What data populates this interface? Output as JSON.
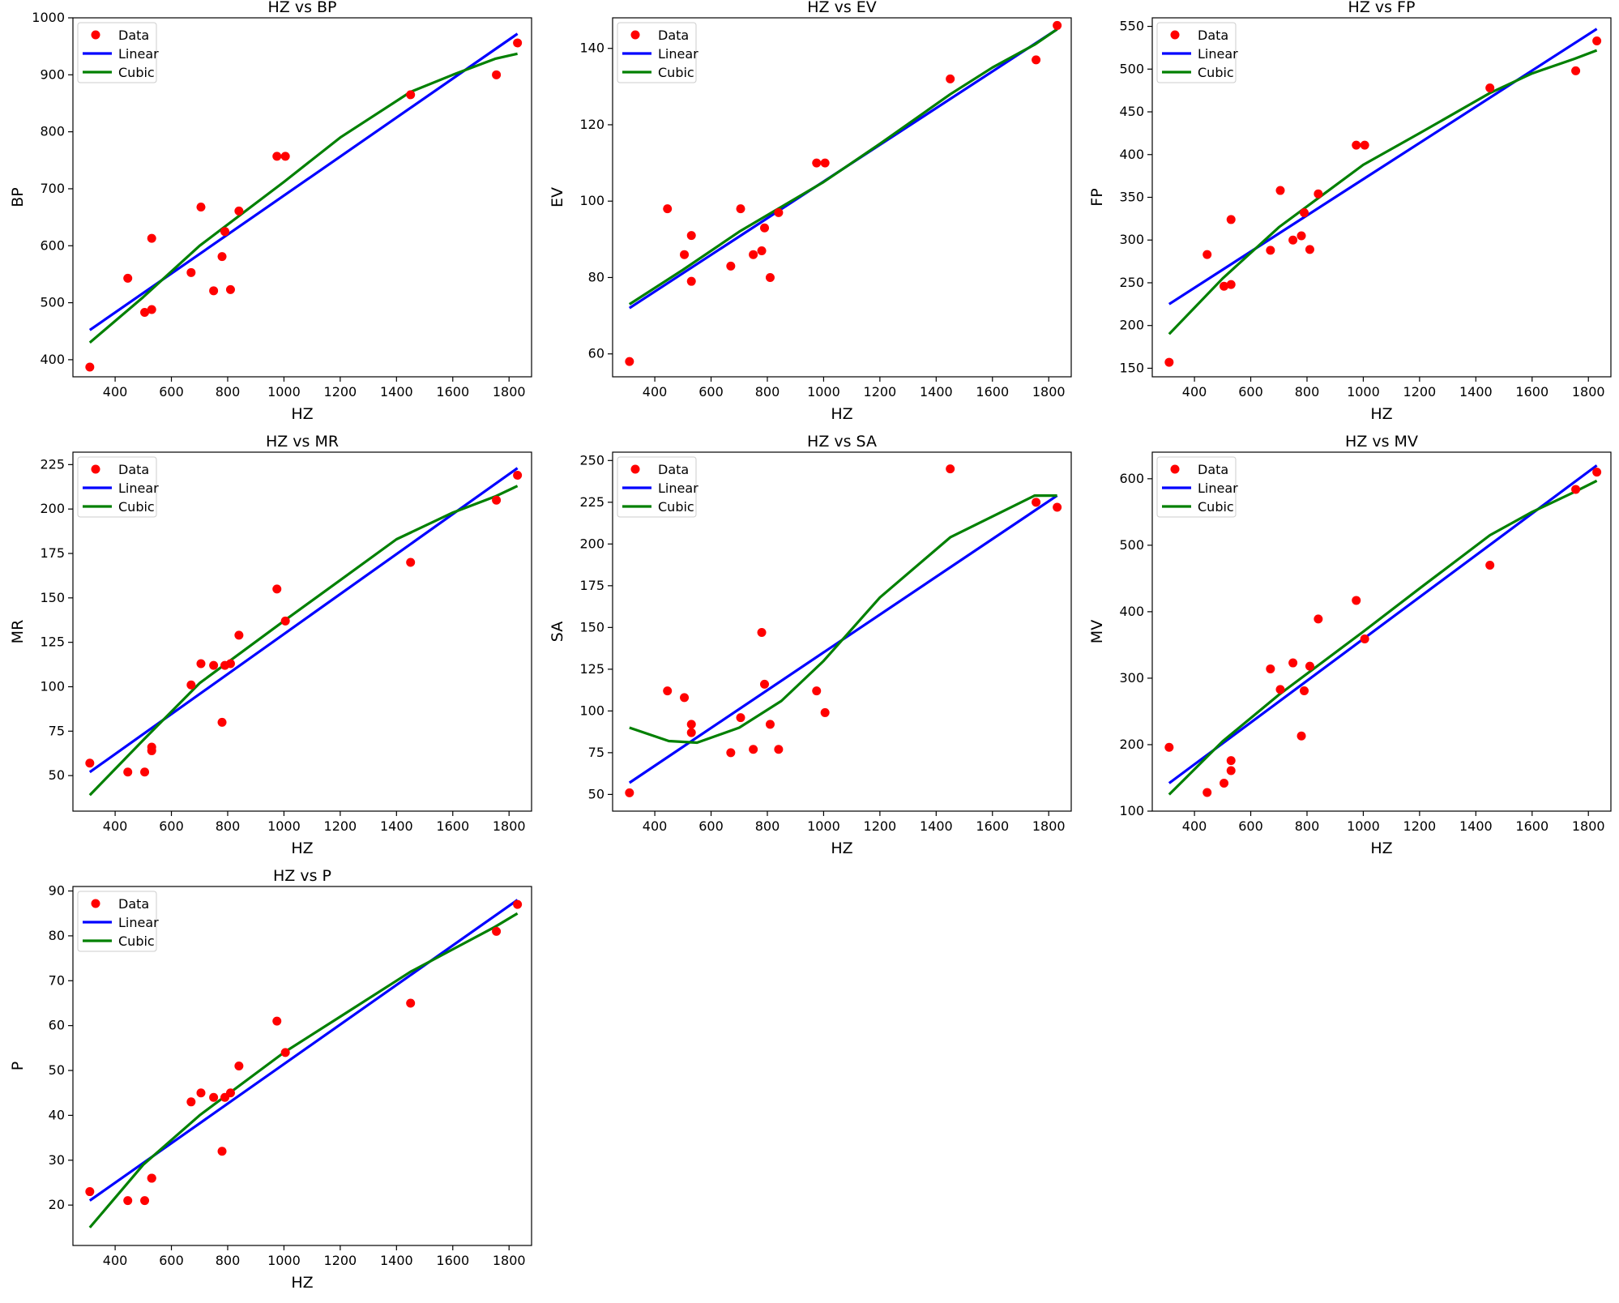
{
  "colors": {
    "data": "#ff0000",
    "linear": "#0000ff",
    "cubic": "#008000"
  },
  "chart_data": [
    {
      "type": "scatter",
      "title": "HZ vs BP",
      "xlabel": "HZ",
      "ylabel": "BP",
      "xlim": [
        250,
        1880
      ],
      "ylim": [
        370,
        1000
      ],
      "xticks": [
        400,
        600,
        800,
        1000,
        1200,
        1400,
        1600,
        1800
      ],
      "yticks": [
        400,
        500,
        600,
        700,
        800,
        900,
        1000
      ],
      "legend_position": "top-left",
      "legend": [
        "Data",
        "Linear",
        "Cubic"
      ],
      "series": [
        {
          "name": "Data",
          "x": [
            310,
            445,
            505,
            530,
            530,
            670,
            705,
            750,
            780,
            790,
            810,
            840,
            975,
            1005,
            1450,
            1755,
            1830
          ],
          "y": [
            387,
            543,
            483,
            488,
            613,
            553,
            668,
            521,
            581,
            625,
            523,
            661,
            757,
            757,
            865,
            900,
            956
          ]
        },
        {
          "name": "Linear",
          "x": [
            310,
            1830
          ],
          "y": [
            452,
            972
          ]
        },
        {
          "name": "Cubic",
          "x": [
            310,
            500,
            700,
            1000,
            1200,
            1450,
            1600,
            1750,
            1830
          ],
          "y": [
            430,
            510,
            600,
            712,
            790,
            870,
            900,
            928,
            937
          ]
        }
      ]
    },
    {
      "type": "scatter",
      "title": "HZ vs EV",
      "xlabel": "HZ",
      "ylabel": "EV",
      "xlim": [
        250,
        1880
      ],
      "ylim": [
        54,
        148
      ],
      "xticks": [
        400,
        600,
        800,
        1000,
        1200,
        1400,
        1600,
        1800
      ],
      "yticks": [
        60,
        80,
        100,
        120,
        140
      ],
      "legend_position": "top-left",
      "legend": [
        "Data",
        "Linear",
        "Cubic"
      ],
      "series": [
        {
          "name": "Data",
          "x": [
            310,
            445,
            505,
            530,
            530,
            670,
            705,
            750,
            780,
            790,
            810,
            840,
            975,
            1005,
            1450,
            1755,
            1830
          ],
          "y": [
            58,
            98,
            86,
            91,
            79,
            83,
            98,
            86,
            87,
            93,
            80,
            97,
            110,
            110,
            132,
            137,
            146
          ]
        },
        {
          "name": "Linear",
          "x": [
            310,
            1830
          ],
          "y": [
            72,
            145
          ]
        },
        {
          "name": "Cubic",
          "x": [
            310,
            500,
            700,
            1000,
            1200,
            1450,
            1600,
            1750,
            1830
          ],
          "y": [
            73,
            82,
            92,
            105,
            115,
            128,
            135,
            141,
            145
          ]
        }
      ]
    },
    {
      "type": "scatter",
      "title": "HZ vs FP",
      "xlabel": "HZ",
      "ylabel": "FP",
      "xlim": [
        250,
        1880
      ],
      "ylim": [
        140,
        560
      ],
      "xticks": [
        400,
        600,
        800,
        1000,
        1200,
        1400,
        1600,
        1800
      ],
      "yticks": [
        150,
        200,
        250,
        300,
        350,
        400,
        450,
        500,
        550
      ],
      "legend_position": "top-left",
      "legend": [
        "Data",
        "Linear",
        "Cubic"
      ],
      "series": [
        {
          "name": "Data",
          "x": [
            310,
            445,
            505,
            530,
            530,
            670,
            705,
            750,
            780,
            790,
            810,
            840,
            975,
            1005,
            1450,
            1755,
            1830
          ],
          "y": [
            157,
            283,
            246,
            324,
            248,
            288,
            358,
            300,
            305,
            332,
            289,
            354,
            411,
            411,
            478,
            498,
            533
          ]
        },
        {
          "name": "Linear",
          "x": [
            310,
            1830
          ],
          "y": [
            225,
            547
          ]
        },
        {
          "name": "Cubic",
          "x": [
            310,
            500,
            700,
            1000,
            1200,
            1450,
            1600,
            1750,
            1830
          ],
          "y": [
            190,
            255,
            315,
            388,
            425,
            472,
            495,
            512,
            522
          ]
        }
      ]
    },
    {
      "type": "scatter",
      "title": "HZ vs MR",
      "xlabel": "HZ",
      "ylabel": "MR",
      "xlim": [
        250,
        1880
      ],
      "ylim": [
        30,
        232
      ],
      "xticks": [
        400,
        600,
        800,
        1000,
        1200,
        1400,
        1600,
        1800
      ],
      "yticks": [
        50,
        75,
        100,
        125,
        150,
        175,
        200,
        225
      ],
      "legend_position": "top-left",
      "legend": [
        "Data",
        "Linear",
        "Cubic"
      ],
      "series": [
        {
          "name": "Data",
          "x": [
            310,
            445,
            505,
            530,
            530,
            670,
            705,
            750,
            780,
            790,
            810,
            840,
            975,
            1005,
            1450,
            1755,
            1830
          ],
          "y": [
            57,
            52,
            52,
            66,
            64,
            101,
            113,
            112,
            80,
            112,
            113,
            129,
            155,
            137,
            170,
            205,
            219
          ]
        },
        {
          "name": "Linear",
          "x": [
            310,
            1830
          ],
          "y": [
            52,
            223
          ]
        },
        {
          "name": "Cubic",
          "x": [
            310,
            500,
            700,
            1000,
            1200,
            1400,
            1600,
            1750,
            1830
          ],
          "y": [
            39,
            70,
            102,
            137,
            160,
            183,
            198,
            207,
            213
          ]
        }
      ]
    },
    {
      "type": "scatter",
      "title": "HZ vs SA",
      "xlabel": "HZ",
      "ylabel": "SA",
      "xlim": [
        250,
        1880
      ],
      "ylim": [
        40,
        255
      ],
      "xticks": [
        400,
        600,
        800,
        1000,
        1200,
        1400,
        1600,
        1800
      ],
      "yticks": [
        50,
        75,
        100,
        125,
        150,
        175,
        200,
        225,
        250
      ],
      "legend_position": "top-left",
      "legend": [
        "Data",
        "Linear",
        "Cubic"
      ],
      "series": [
        {
          "name": "Data",
          "x": [
            310,
            445,
            505,
            530,
            530,
            670,
            705,
            750,
            780,
            790,
            810,
            840,
            975,
            1005,
            1450,
            1755,
            1830
          ],
          "y": [
            51,
            112,
            108,
            92,
            87,
            75,
            96,
            77,
            147,
            116,
            92,
            77,
            112,
            99,
            245,
            225,
            222
          ]
        },
        {
          "name": "Linear",
          "x": [
            310,
            1830
          ],
          "y": [
            57,
            229
          ]
        },
        {
          "name": "Cubic",
          "x": [
            310,
            450,
            550,
            700,
            850,
            1000,
            1200,
            1450,
            1750,
            1830
          ],
          "y": [
            90,
            82,
            81,
            90,
            106,
            130,
            168,
            204,
            229,
            229
          ]
        }
      ]
    },
    {
      "type": "scatter",
      "title": "HZ vs MV",
      "xlabel": "HZ",
      "ylabel": "MV",
      "xlim": [
        250,
        1880
      ],
      "ylim": [
        100,
        640
      ],
      "xticks": [
        400,
        600,
        800,
        1000,
        1200,
        1400,
        1600,
        1800
      ],
      "yticks": [
        100,
        200,
        300,
        400,
        500,
        600
      ],
      "legend_position": "top-left",
      "legend": [
        "Data",
        "Linear",
        "Cubic"
      ],
      "series": [
        {
          "name": "Data",
          "x": [
            310,
            445,
            505,
            530,
            530,
            670,
            705,
            750,
            780,
            790,
            810,
            840,
            975,
            1005,
            1450,
            1755,
            1830
          ],
          "y": [
            196,
            128,
            142,
            176,
            161,
            314,
            283,
            323,
            213,
            281,
            318,
            389,
            417,
            359,
            470,
            584,
            610
          ]
        },
        {
          "name": "Linear",
          "x": [
            310,
            1830
          ],
          "y": [
            142,
            620
          ]
        },
        {
          "name": "Cubic",
          "x": [
            310,
            500,
            700,
            1000,
            1200,
            1450,
            1600,
            1750,
            1830
          ],
          "y": [
            125,
            205,
            275,
            370,
            435,
            515,
            550,
            580,
            597
          ]
        }
      ]
    },
    {
      "type": "scatter",
      "title": "HZ vs P",
      "xlabel": "HZ",
      "ylabel": "P",
      "xlim": [
        250,
        1880
      ],
      "ylim": [
        11,
        91
      ],
      "xticks": [
        400,
        600,
        800,
        1000,
        1200,
        1400,
        1600,
        1800
      ],
      "yticks": [
        20,
        30,
        40,
        50,
        60,
        70,
        80,
        90
      ],
      "legend_position": "top-left",
      "legend": [
        "Data",
        "Linear",
        "Cubic"
      ],
      "series": [
        {
          "name": "Data",
          "x": [
            310,
            445,
            505,
            530,
            530,
            670,
            705,
            750,
            780,
            790,
            810,
            840,
            975,
            1005,
            1450,
            1755,
            1830
          ],
          "y": [
            23,
            21,
            21,
            26,
            26,
            43,
            45,
            44,
            32,
            44,
            45,
            51,
            61,
            54,
            65,
            81,
            87
          ]
        },
        {
          "name": "Linear",
          "x": [
            310,
            1830
          ],
          "y": [
            21,
            88
          ]
        },
        {
          "name": "Cubic",
          "x": [
            310,
            500,
            700,
            1000,
            1200,
            1450,
            1600,
            1750,
            1830
          ],
          "y": [
            15,
            29,
            40,
            54,
            62,
            72,
            77,
            82,
            85
          ]
        }
      ]
    }
  ]
}
